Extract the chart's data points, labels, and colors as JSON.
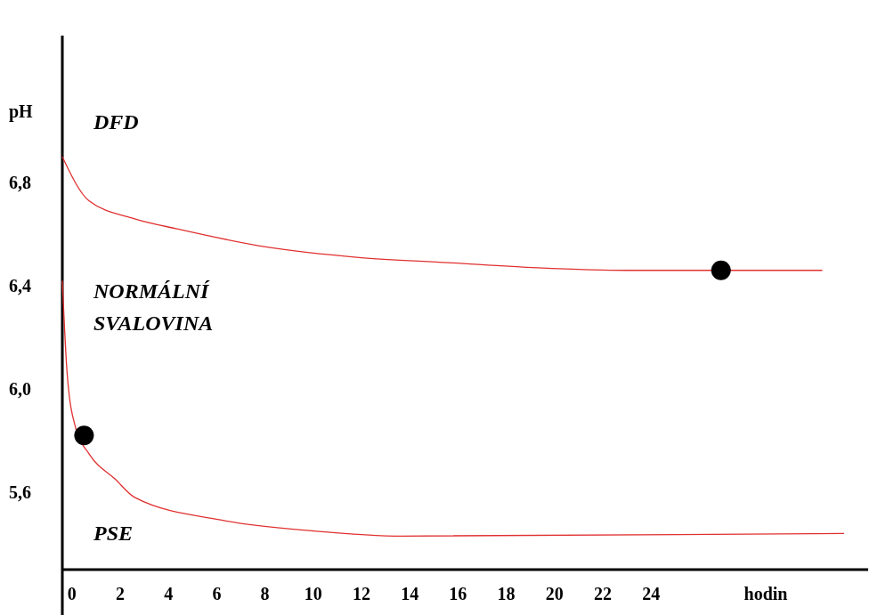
{
  "chart_data": {
    "type": "line",
    "xlabel": "hodin",
    "ylabel": "pH",
    "xlim": [
      -0.4,
      33
    ],
    "ylim": [
      5.3,
      7.37
    ],
    "xticks": [
      0,
      2,
      4,
      6,
      8,
      10,
      12,
      14,
      16,
      18,
      20,
      22,
      24
    ],
    "yticks": [
      {
        "value": 5.6,
        "label": "5,6"
      },
      {
        "value": 6.0,
        "label": "6,0"
      },
      {
        "value": 6.4,
        "label": "6,4"
      },
      {
        "value": 6.8,
        "label": "6,8"
      }
    ],
    "grid": false,
    "marker": "none",
    "line_style": "solid",
    "annotations": [
      "DFD",
      "NORMÁLNÍ SVALOVINA",
      "PSE"
    ],
    "series": [
      {
        "color": "#e03030",
        "x": [
          -0.4,
          0.7,
          2.6,
          4.4,
          8.1,
          11.9,
          15.6,
          19.3,
          23.0,
          31.1
        ],
        "values": [
          6.9,
          6.73,
          6.66,
          6.62,
          6.55,
          6.51,
          6.49,
          6.47,
          6.46,
          6.46
        ]
      },
      {
        "color": "#e03030",
        "x": [
          -0.4,
          -0.2,
          0.15,
          0.7,
          1.8,
          2.6,
          6.3,
          10,
          13.7,
          32
        ],
        "values": [
          6.42,
          6.06,
          5.85,
          5.75,
          5.65,
          5.58,
          5.49,
          5.45,
          5.43,
          5.44
        ]
      },
      {
        "type": "scatter",
        "color": "#000000",
        "marker": "circle",
        "x": [
          26.9,
          0.5
        ],
        "values": [
          6.46,
          5.82
        ]
      }
    ]
  }
}
